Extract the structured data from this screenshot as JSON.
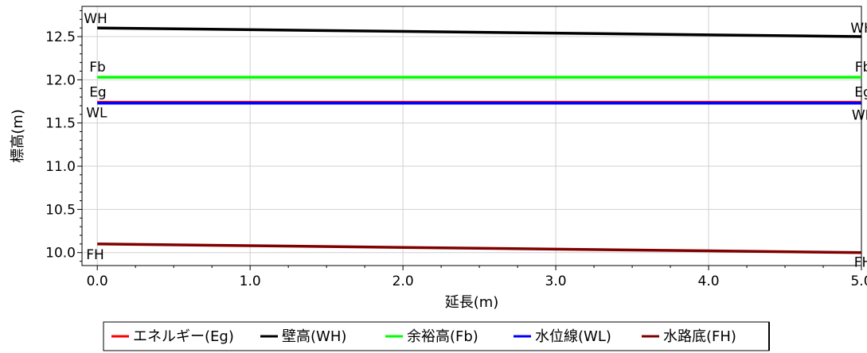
{
  "chart_data": {
    "type": "line",
    "xlabel": "延長(m)",
    "ylabel": "標高(m)",
    "xlim": [
      -0.1,
      5.0
    ],
    "ylim": [
      9.85,
      12.85
    ],
    "x_ticks": [
      "0.0",
      "1.0",
      "2.0",
      "3.0",
      "4.0",
      "5.0"
    ],
    "y_ticks": [
      "10.0",
      "10.5",
      "11.0",
      "11.5",
      "12.0",
      "12.5"
    ],
    "grid": true,
    "legend_position": "bottom-center",
    "series": [
      {
        "name": "エネルギー(Eg)",
        "color": "#ff0000",
        "x": [
          0.0,
          5.0
        ],
        "y": [
          11.74,
          11.74
        ],
        "label_start": "Eg",
        "label_end": "Eg"
      },
      {
        "name": "壁高(WH)",
        "color": "#000000",
        "x": [
          0.0,
          5.0
        ],
        "y": [
          12.6,
          12.5
        ],
        "label_start": "WH",
        "label_end": "WH"
      },
      {
        "name": "余裕高(Fb)",
        "color": "#00ff00",
        "x": [
          0.0,
          5.0
        ],
        "y": [
          12.03,
          12.03
        ],
        "label_start": "Fb",
        "label_end": "Fb"
      },
      {
        "name": "水位線(WL)",
        "color": "#0000ff",
        "x": [
          0.0,
          5.0
        ],
        "y": [
          11.73,
          11.73
        ],
        "label_start": "WL",
        "label_end": "WL"
      },
      {
        "name": "水路底(FH)",
        "color": "#800000",
        "x": [
          0.0,
          5.0
        ],
        "y": [
          10.1,
          10.0
        ],
        "label_start": "FH",
        "label_end": "FH"
      }
    ]
  }
}
